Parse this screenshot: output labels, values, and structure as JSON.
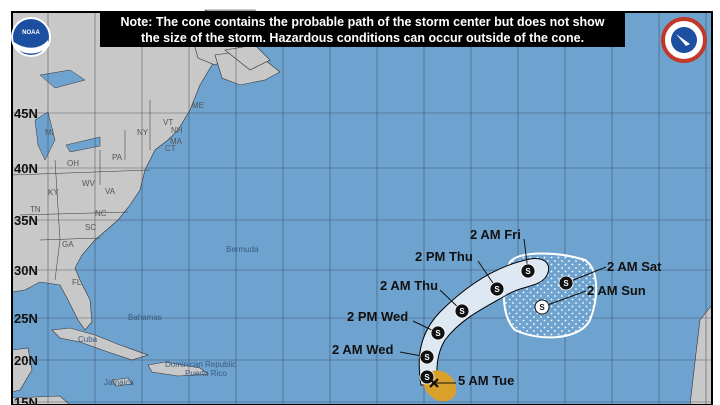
{
  "note": {
    "line1": "Note: The cone contains the probable path of the storm center but does not show",
    "line2": "the size of the storm. Hazardous conditions can occur outside of the cone."
  },
  "logos": {
    "left": "NOAA",
    "right": "NATIONAL WEATHER SERVICE"
  },
  "latitude_labels": [
    "45N",
    "40N",
    "35N",
    "30N",
    "25N",
    "20N",
    "15N"
  ],
  "state_labels": [
    "ME",
    "MI",
    "NY",
    "VT",
    "NH",
    "MA",
    "CT",
    "PA",
    "OH",
    "WV",
    "VA",
    "KY",
    "TN",
    "NC",
    "SC",
    "GA",
    "FL"
  ],
  "places": [
    "Bermuda",
    "Bahamas",
    "Cuba",
    "Jamaica",
    "Dominican Republic",
    "Puerto Rico"
  ],
  "track": {
    "current": "5 AM Tue",
    "forecast_points": [
      {
        "label": "2 AM Wed",
        "type": "S"
      },
      {
        "label": "2 PM Wed",
        "type": "S"
      },
      {
        "label": "2 AM Thu",
        "type": "S"
      },
      {
        "label": "2 PM Thu",
        "type": "S"
      },
      {
        "label": "2 AM Fri",
        "type": "S"
      },
      {
        "label": "2 AM Sat",
        "type": "S"
      },
      {
        "label": "2 AM Sun",
        "type": "S"
      }
    ],
    "point_symbol": "S"
  },
  "colors": {
    "ocean": "#6fa3cf",
    "land": "#c8c8c8",
    "cone": "#dde8f2",
    "current_wind": "#d9a12c"
  }
}
